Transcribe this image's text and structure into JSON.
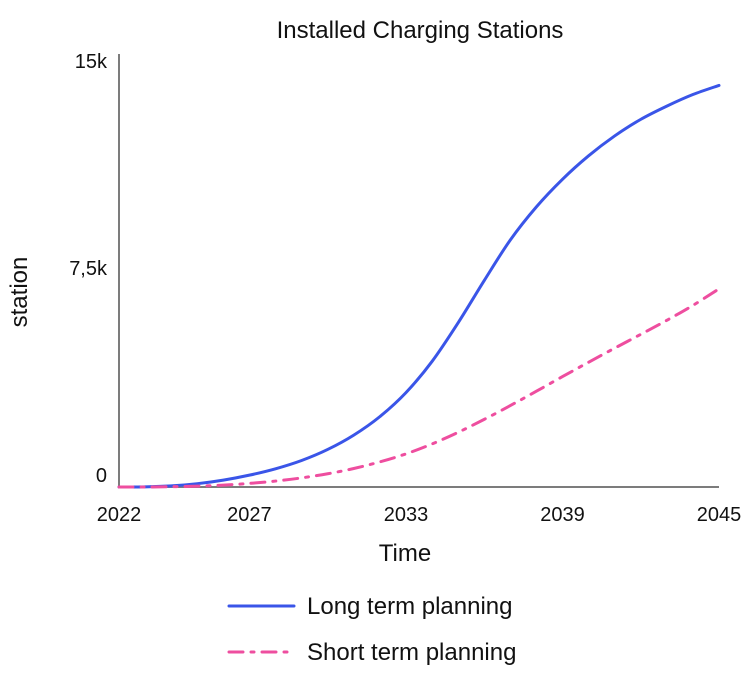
{
  "chart_data": {
    "type": "line",
    "title": "Installed Charging Stations",
    "xlabel": "Time",
    "ylabel": "station",
    "xlim": [
      2022,
      2045
    ],
    "ylim": [
      0,
      15000
    ],
    "x_ticks": [
      2022,
      2027,
      2033,
      2039,
      2045
    ],
    "x_tick_labels": [
      "2022",
      "2027",
      "2033",
      "2039",
      "2045"
    ],
    "y_ticks": [
      0,
      7500,
      15000
    ],
    "y_tick_labels": [
      "0",
      "7,5k",
      "15k"
    ],
    "grid": false,
    "legend_position": "bottom",
    "series": [
      {
        "name": "Long term planning",
        "color": "#3a55e8",
        "line_style": "solid",
        "x": [
          2022,
          2023,
          2024,
          2025,
          2026,
          2027,
          2028,
          2029,
          2030,
          2031,
          2032,
          2033,
          2034,
          2035,
          2036,
          2037,
          2038,
          2039,
          2040,
          2041,
          2042,
          2043,
          2044,
          2045
        ],
        "values": [
          0,
          5,
          40,
          120,
          250,
          430,
          660,
          960,
          1360,
          1880,
          2550,
          3420,
          4550,
          5950,
          7480,
          8950,
          10150,
          11150,
          12000,
          12720,
          13320,
          13800,
          14220,
          14550
        ]
      },
      {
        "name": "Short term planning",
        "color": "#ee4e9f",
        "line_style": "dashdot",
        "x": [
          2022,
          2023,
          2024,
          2025,
          2026,
          2027,
          2028,
          2029,
          2030,
          2031,
          2032,
          2033,
          2034,
          2035,
          2036,
          2037,
          2038,
          2039,
          2040,
          2041,
          2042,
          2043,
          2044,
          2045
        ],
        "values": [
          0,
          0,
          10,
          30,
          70,
          130,
          215,
          330,
          480,
          670,
          910,
          1200,
          1560,
          1980,
          2450,
          2950,
          3470,
          4000,
          4520,
          5030,
          5530,
          6040,
          6580,
          7180
        ]
      }
    ]
  }
}
